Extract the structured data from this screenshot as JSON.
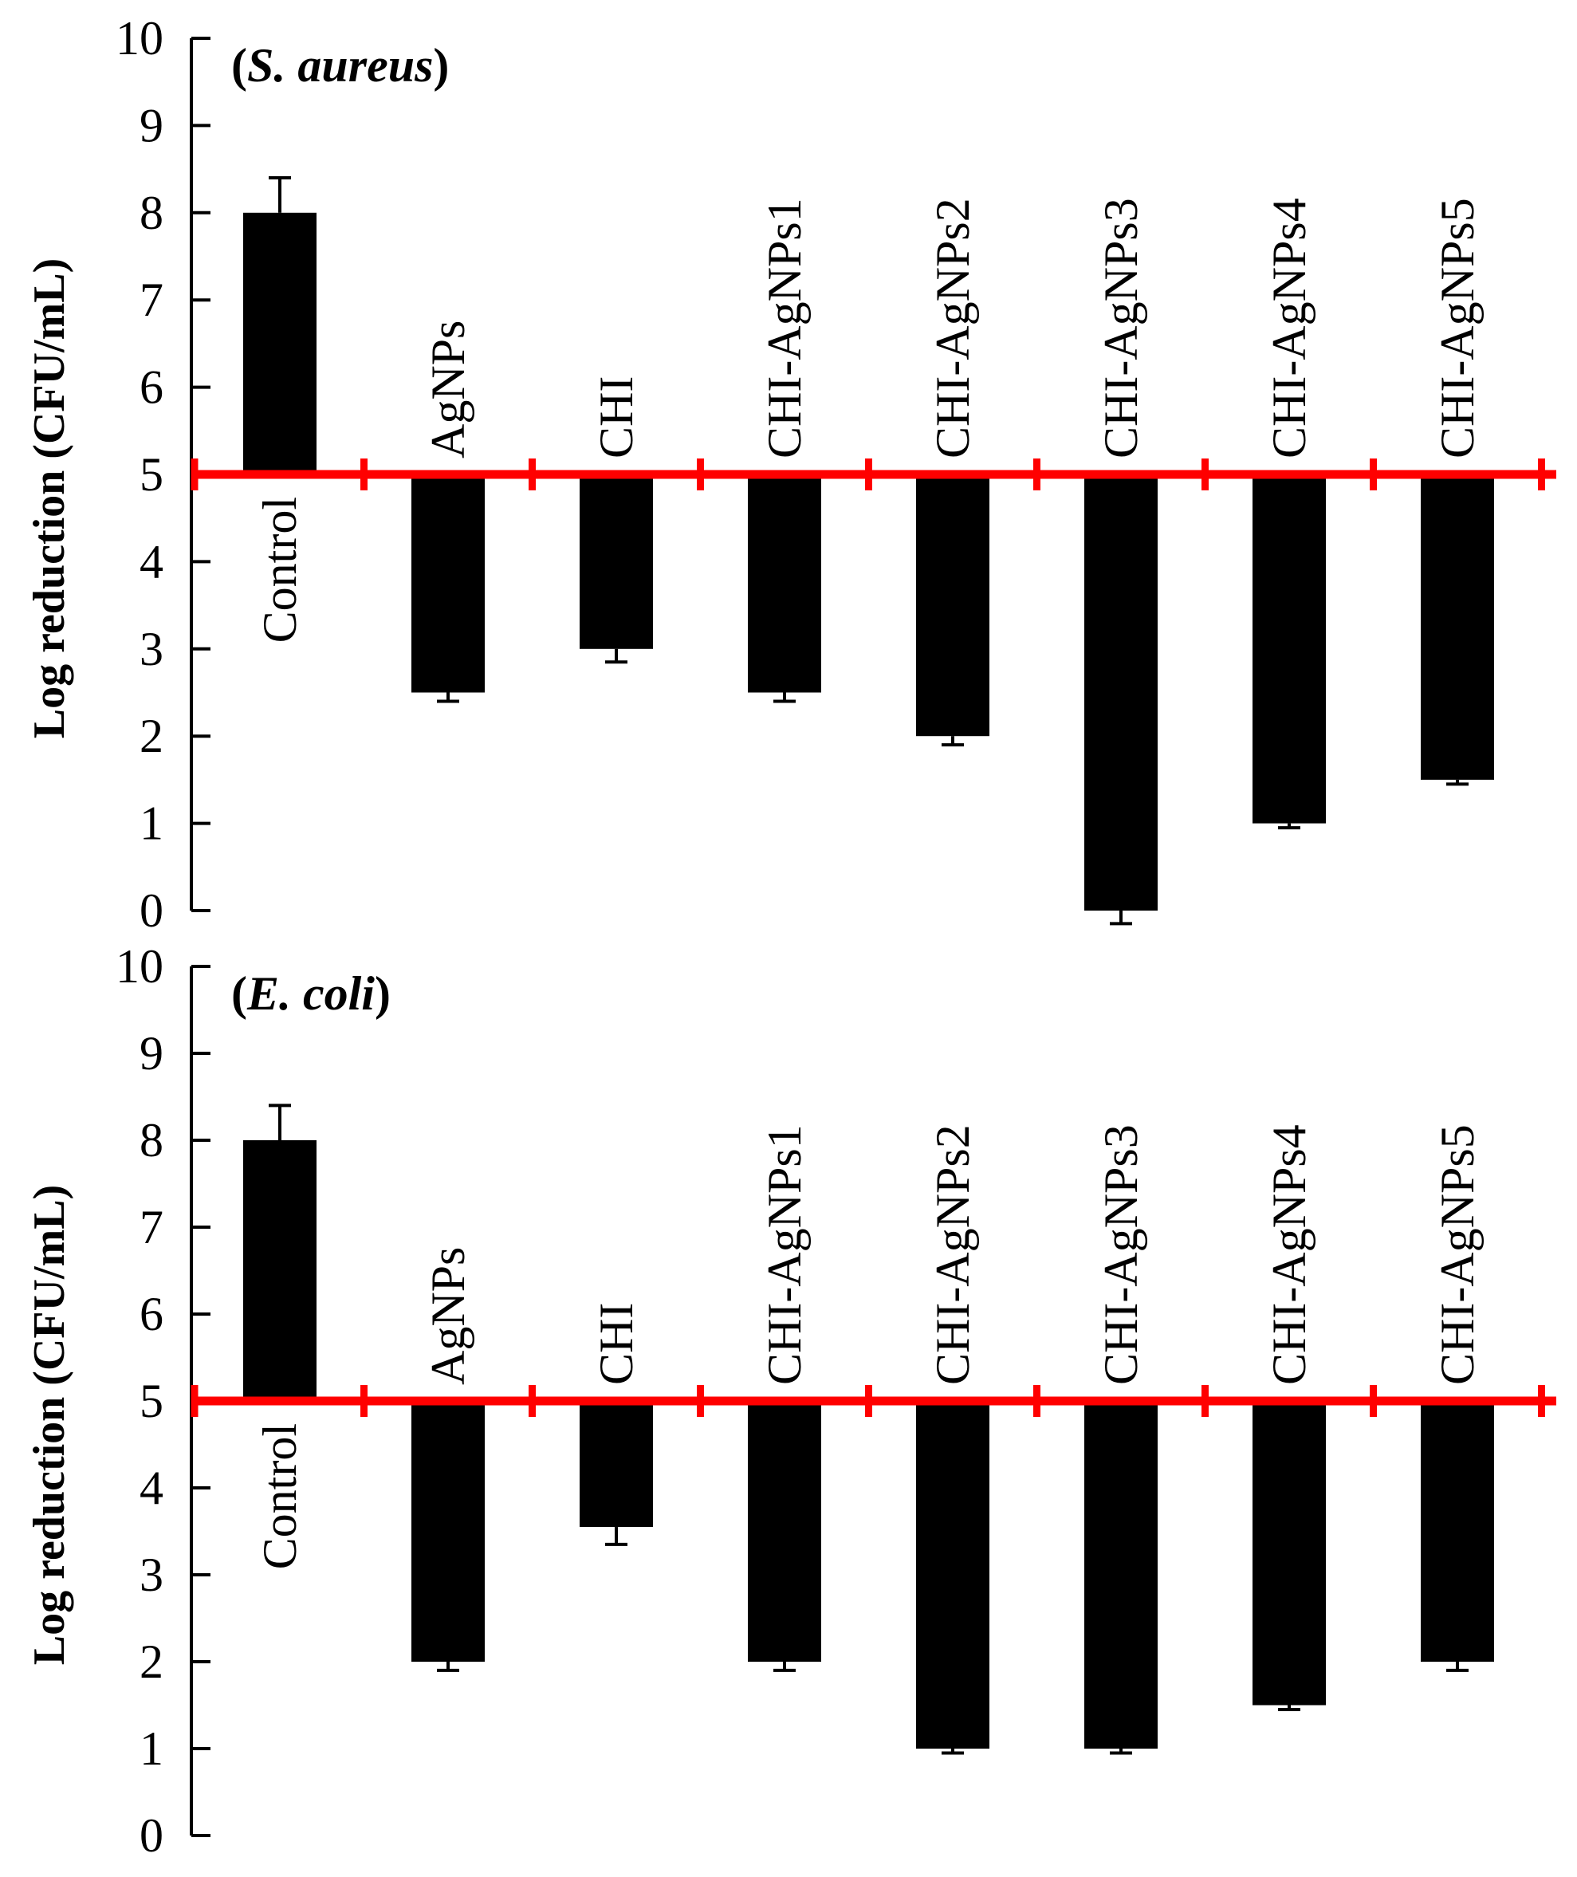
{
  "chart_data": [
    {
      "type": "bar",
      "title_prefix": "(",
      "title_organism": "S. aureus",
      "title_suffix": ")",
      "ylabel": "Log reduction (CFU/mL)",
      "ylim": [
        0,
        10
      ],
      "yticks": [
        "0",
        "1",
        "2",
        "3",
        "4",
        "5",
        "6",
        "7",
        "8",
        "9",
        "10"
      ],
      "baseline": 5,
      "baseline_color": "#ff0000",
      "bar_color": "#000000",
      "categories": [
        "Control",
        "AgNPs",
        "CHI",
        "CHI-AgNPs1",
        "CHI-AgNPs2",
        "CHI-AgNPs3",
        "CHI-AgNPs4",
        "CHI-AgNPs5"
      ],
      "values": [
        8.0,
        2.5,
        3.0,
        2.5,
        2.0,
        0.0,
        1.0,
        1.5
      ],
      "errors": [
        0.4,
        0.1,
        0.15,
        0.1,
        0.1,
        0.15,
        0.05,
        0.05
      ]
    },
    {
      "type": "bar",
      "title_prefix": "(",
      "title_organism": "E. coli",
      "title_suffix": ")",
      "ylabel": "Log reduction (CFU/mL)",
      "ylim": [
        0,
        10
      ],
      "yticks": [
        "0",
        "1",
        "2",
        "3",
        "4",
        "5",
        "6",
        "7",
        "8",
        "9",
        "10"
      ],
      "baseline": 5,
      "baseline_color": "#ff0000",
      "bar_color": "#000000",
      "categories": [
        "Control",
        "AgNPs",
        "CHI",
        "CHI-AgNPs1",
        "CHI-AgNPs2",
        "CHI-AgNPs3",
        "CHI-AgNPs4",
        "CHI-AgNPs5"
      ],
      "values": [
        8.0,
        2.0,
        3.55,
        2.0,
        1.0,
        1.0,
        1.5,
        2.0
      ],
      "errors": [
        0.4,
        0.1,
        0.2,
        0.1,
        0.05,
        0.05,
        0.05,
        0.1
      ]
    }
  ]
}
